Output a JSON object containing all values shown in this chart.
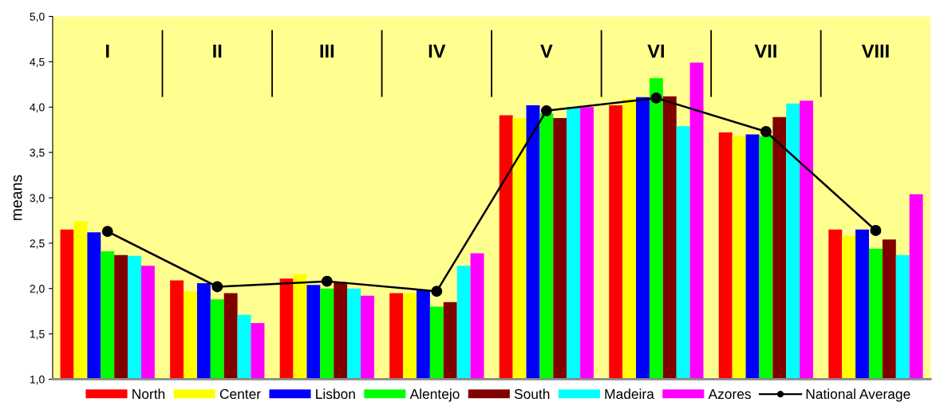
{
  "chart_data": {
    "type": "bar",
    "ylabel": "means",
    "categories": [
      "I",
      "II",
      "III",
      "IV",
      "V",
      "VI",
      "VII",
      "VIII"
    ],
    "ylim": [
      1,
      5
    ],
    "yticks": [
      {
        "value": 1,
        "label": "1,0"
      },
      {
        "value": 1.5,
        "label": "1,5"
      },
      {
        "value": 2,
        "label": "2,0"
      },
      {
        "value": 2.5,
        "label": "2,5"
      },
      {
        "value": 3,
        "label": "3,0"
      },
      {
        "value": 3.5,
        "label": "3,5"
      },
      {
        "value": 4,
        "label": "4,0"
      },
      {
        "value": 4.5,
        "label": "4,5"
      },
      {
        "value": 5,
        "label": "5,0"
      }
    ],
    "grid": false,
    "legend": "bottom",
    "series": [
      {
        "name": "North",
        "color": "#ff0000",
        "values": [
          2.65,
          2.09,
          2.11,
          1.95,
          3.91,
          4.02,
          3.72,
          2.65
        ]
      },
      {
        "name": "Center",
        "color": "#ffff00",
        "values": [
          2.74,
          1.97,
          2.16,
          1.95,
          3.88,
          4.09,
          3.68,
          2.58
        ]
      },
      {
        "name": "Lisbon",
        "color": "#0000ff",
        "values": [
          2.62,
          2.06,
          2.04,
          1.98,
          4.02,
          4.11,
          3.7,
          2.65
        ]
      },
      {
        "name": "Alentejo",
        "color": "#00ff00",
        "values": [
          2.41,
          1.88,
          2.0,
          1.8,
          3.93,
          4.32,
          3.68,
          2.44
        ]
      },
      {
        "name": "South",
        "color": "#800000",
        "values": [
          2.37,
          1.95,
          2.07,
          1.85,
          3.88,
          4.12,
          3.89,
          2.54
        ]
      },
      {
        "name": "Madeira",
        "color": "#00ffff",
        "values": [
          2.36,
          1.71,
          2.0,
          2.25,
          4.0,
          3.79,
          4.04,
          2.37
        ]
      },
      {
        "name": "Azores",
        "color": "#ff00ff",
        "values": [
          2.25,
          1.62,
          1.92,
          2.39,
          4.0,
          4.49,
          4.07,
          3.04
        ]
      },
      {
        "name": "National Average",
        "type": "line",
        "color": "#000000",
        "marker": "circle",
        "line_style": "solid",
        "values": [
          2.63,
          2.02,
          2.08,
          1.97,
          3.96,
          4.1,
          3.73,
          2.64
        ]
      }
    ]
  }
}
